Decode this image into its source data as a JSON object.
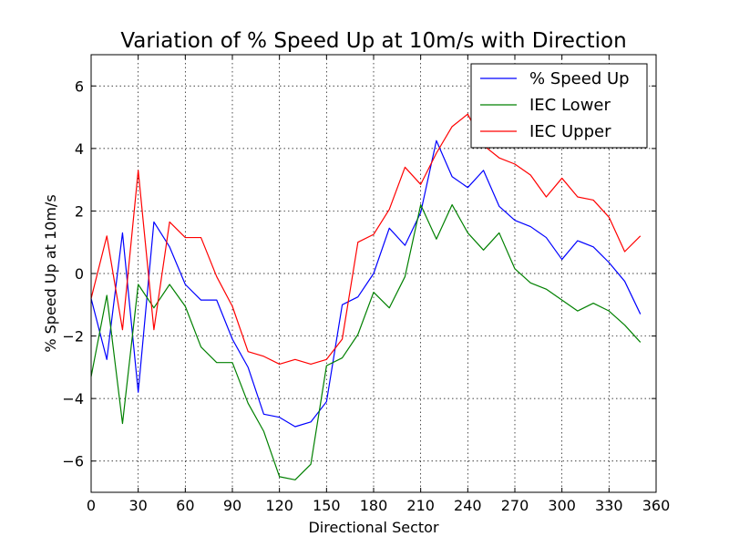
{
  "chart_data": {
    "type": "line",
    "title": "Variation of % Speed Up at 10m/s with Direction",
    "xlabel": "Directional Sector",
    "ylabel": "% Speed Up at 10m/s",
    "xlim": [
      0,
      360
    ],
    "ylim": [
      -7,
      7
    ],
    "xticks": [
      0,
      30,
      60,
      90,
      120,
      150,
      180,
      210,
      240,
      270,
      300,
      330,
      360
    ],
    "yticks": [
      -6,
      -4,
      -2,
      0,
      2,
      4,
      6
    ],
    "xtick_labels": [
      "0",
      "30",
      "60",
      "90",
      "120",
      "150",
      "180",
      "210",
      "240",
      "270",
      "300",
      "330",
      "360"
    ],
    "ytick_labels": [
      "−6",
      "−4",
      "−2",
      "0",
      "2",
      "4",
      "6"
    ],
    "grid": true,
    "legend": "top-right",
    "x": [
      0,
      10,
      20,
      30,
      40,
      50,
      60,
      70,
      80,
      90,
      100,
      110,
      120,
      130,
      140,
      150,
      160,
      170,
      180,
      190,
      200,
      210,
      220,
      230,
      240,
      250,
      260,
      270,
      280,
      290,
      300,
      310,
      320,
      330,
      340,
      350
    ],
    "series": [
      {
        "name": "% Speed Up",
        "color": "#0000ff",
        "values": [
          -0.8,
          -2.75,
          1.3,
          -3.8,
          1.65,
          0.85,
          -0.35,
          -0.85,
          -0.85,
          -2.1,
          -3.0,
          -4.5,
          -4.6,
          -4.9,
          -4.75,
          -4.1,
          -1.0,
          -0.75,
          0.0,
          1.45,
          0.9,
          1.95,
          4.25,
          3.1,
          2.75,
          3.3,
          2.15,
          1.7,
          1.5,
          1.15,
          0.45,
          1.05,
          0.85,
          0.35,
          -0.25,
          -1.3
        ]
      },
      {
        "name": "IEC Lower",
        "color": "#008000",
        "values": [
          -3.3,
          -0.7,
          -4.8,
          -0.35,
          -1.1,
          -0.35,
          -1.05,
          -2.35,
          -2.85,
          -2.85,
          -4.15,
          -5.05,
          -6.5,
          -6.6,
          -6.1,
          -2.95,
          -2.7,
          -1.95,
          -0.6,
          -1.1,
          -0.1,
          2.2,
          1.1,
          2.2,
          1.3,
          0.75,
          1.3,
          0.15,
          -0.3,
          -0.5,
          -0.85,
          -1.2,
          -0.95,
          -1.2,
          -1.65,
          -2.2
        ]
      },
      {
        "name": "IEC Upper",
        "color": "#ff0000",
        "values": [
          -0.8,
          1.2,
          -1.8,
          3.3,
          -1.8,
          1.65,
          1.15,
          1.15,
          -0.1,
          -1.05,
          -2.5,
          -2.65,
          -2.9,
          -2.75,
          -2.9,
          -2.75,
          -2.1,
          1.0,
          1.25,
          2.05,
          3.4,
          2.85,
          3.85,
          4.7,
          5.1,
          4.1,
          3.7,
          3.5,
          3.15,
          2.45,
          3.05,
          2.45,
          2.35,
          1.8,
          0.7,
          1.2
        ]
      }
    ]
  }
}
